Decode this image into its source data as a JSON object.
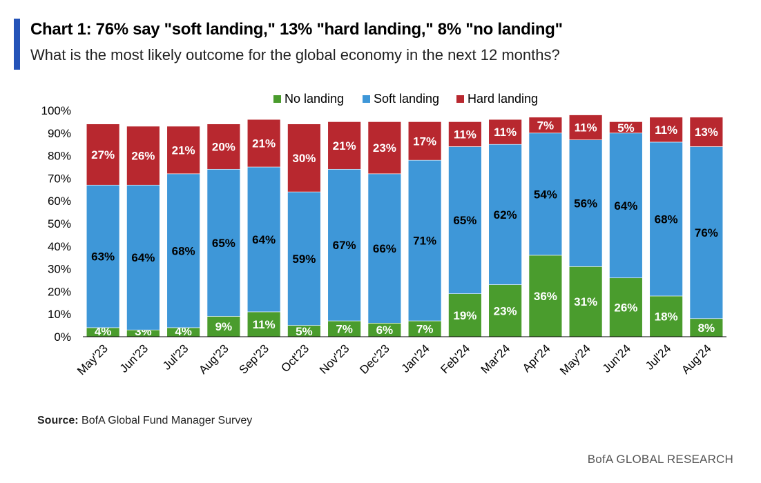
{
  "header": {
    "title": "Chart 1: 76% say \"soft landing,\" 13% \"hard landing,\" 8% \"no landing\"",
    "subtitle": "What is the most likely outcome for the global economy in the next 12 months?"
  },
  "footer": {
    "source_label": "Source:",
    "source_text": "BofA Global Fund Manager Survey",
    "brand": "BofA GLOBAL RESEARCH"
  },
  "colors": {
    "accent": "#2453b8",
    "no_landing": "#4a9c2d",
    "soft_landing": "#3e97d8",
    "hard_landing": "#b8282f"
  },
  "chart_data": {
    "type": "bar",
    "stacked": true,
    "title": "Chart 1: 76% say \"soft landing,\" 13% \"hard landing,\" 8% \"no landing\"",
    "xlabel": "",
    "ylabel": "",
    "ylim": [
      0,
      100
    ],
    "yticks": [
      "0%",
      "10%",
      "20%",
      "30%",
      "40%",
      "50%",
      "60%",
      "70%",
      "80%",
      "90%",
      "100%"
    ],
    "legend_position": "top-center",
    "categories": [
      "May'23",
      "Jun'23",
      "Jul'23",
      "Aug'23",
      "Sep'23",
      "Oct'23",
      "Nov'23",
      "Dec'23",
      "Jan'24",
      "Feb'24",
      "Mar'24",
      "Apr'24",
      "May'24",
      "Jun'24",
      "Jul'24",
      "Aug'24"
    ],
    "series": [
      {
        "name": "No landing",
        "color": "#4a9c2d",
        "values": [
          4,
          3,
          4,
          9,
          11,
          5,
          7,
          6,
          7,
          19,
          23,
          36,
          31,
          26,
          18,
          8
        ],
        "labels": [
          "4%",
          "3%",
          "4%",
          "9%",
          "11%",
          "5%",
          "7%",
          "6%",
          "7%",
          "19%",
          "23%",
          "36%",
          "31%",
          "26%",
          "18%",
          "8%"
        ]
      },
      {
        "name": "Soft landing",
        "color": "#3e97d8",
        "values": [
          63,
          64,
          68,
          65,
          64,
          59,
          67,
          66,
          71,
          65,
          62,
          54,
          56,
          64,
          68,
          76
        ],
        "labels": [
          "63%",
          "64%",
          "68%",
          "65%",
          "64%",
          "59%",
          "67%",
          "66%",
          "71%",
          "65%",
          "62%",
          "54%",
          "56%",
          "64%",
          "68%",
          "76%"
        ]
      },
      {
        "name": "Hard landing",
        "color": "#b8282f",
        "values": [
          27,
          26,
          21,
          20,
          21,
          30,
          21,
          23,
          17,
          11,
          11,
          7,
          11,
          5,
          11,
          13
        ],
        "labels": [
          "27%",
          "26%",
          "21%",
          "20%",
          "21%",
          "30%",
          "21%",
          "23%",
          "17%",
          "11%",
          "11%",
          "7%",
          "11%",
          "5%",
          "11%",
          "13%"
        ]
      }
    ]
  }
}
